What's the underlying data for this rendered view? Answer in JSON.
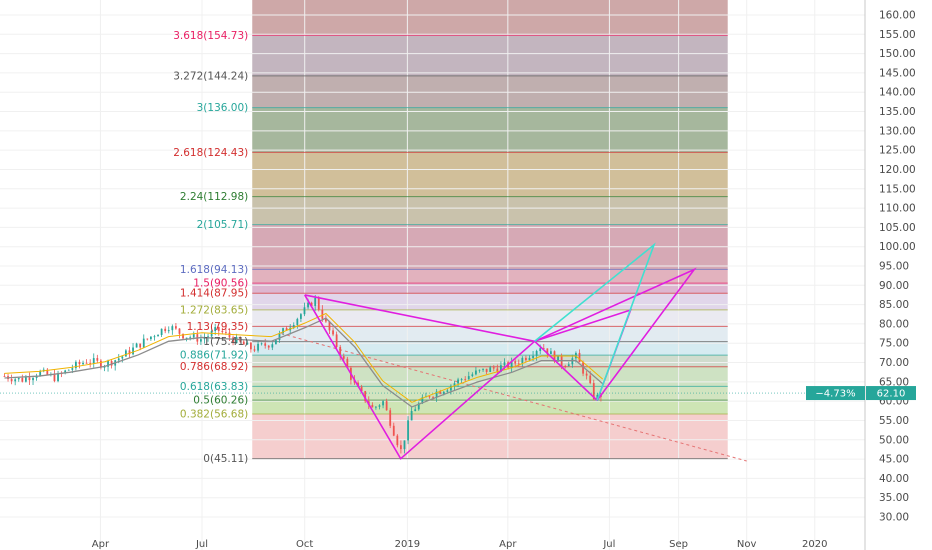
{
  "chart_data": {
    "type": "line",
    "title": "",
    "xlabel": "",
    "ylabel": "",
    "ylim": [
      25,
      165
    ],
    "y_ticks": [
      "160.00",
      "155.00",
      "150.00",
      "145.00",
      "140.00",
      "135.00",
      "130.00",
      "125.00",
      "120.00",
      "115.00",
      "110.00",
      "105.00",
      "100.00",
      "95.00",
      "90.00",
      "85.00",
      "80.00",
      "75.00",
      "70.00",
      "65.00",
      "60.00",
      "55.00",
      "50.00",
      "45.00",
      "40.00",
      "35.00",
      "30.00"
    ],
    "x_ticks": [
      {
        "label": "Apr",
        "date": "2018-04-01"
      },
      {
        "label": "Jul",
        "date": "2018-07-01"
      },
      {
        "label": "Oct",
        "date": "2018-10-01"
      },
      {
        "label": "2019",
        "date": "2019-01-01"
      },
      {
        "label": "Apr",
        "date": "2019-04-01"
      },
      {
        "label": "Jul",
        "date": "2019-07-01"
      },
      {
        "label": "Sep",
        "date": "2019-09-01"
      },
      {
        "label": "Nov",
        "date": "2019-11-01"
      },
      {
        "label": "2020",
        "date": "2020-01-01"
      }
    ],
    "x_range": [
      "2018-01-01",
      "2020-02-15"
    ],
    "fib_start": "2018-08-15",
    "fib_end": "2019-10-15",
    "fib_levels": [
      {
        "label": "0(45.11)",
        "value": 45.11,
        "color": "#555555",
        "fill": "#f3c6c6"
      },
      {
        "label": "0.382(56.68)",
        "value": 56.68,
        "color": "#a3ad3a",
        "fill": "#c6e0a8"
      },
      {
        "label": "0.5(60.26)",
        "value": 60.26,
        "color": "#2e7d32",
        "fill": "#c9dfb5"
      },
      {
        "label": "0.618(63.83)",
        "value": 63.83,
        "color": "#26a69a",
        "fill": "#c5ddb9"
      },
      {
        "label": "0.786(68.92)",
        "value": 68.92,
        "color": "#d32f2f",
        "fill": "#c8d6c4"
      },
      {
        "label": "0.886(71.92)",
        "value": 71.92,
        "color": "#26a69a",
        "fill": "#cfe8ee"
      },
      {
        "label": "1(75.41)",
        "value": 75.41,
        "color": "#555555",
        "fill": "#dde7ee"
      },
      {
        "label": "1.13(79.35)",
        "value": 79.35,
        "color": "#d32f2f",
        "fill": "#e6e6ef"
      },
      {
        "label": "1.272(83.65)",
        "value": 83.65,
        "color": "#a3ad3a",
        "fill": "#dccfe6"
      },
      {
        "label": "1.414(87.95)",
        "value": 87.95,
        "color": "#d32f2f",
        "fill": "#d7a9c8"
      },
      {
        "label": "1.5(90.56)",
        "value": 90.56,
        "color": "#e91e63",
        "fill": "#dda5b3"
      },
      {
        "label": "1.618(94.13)",
        "value": 94.13,
        "color": "#5c6bc0",
        "fill": "#cf9aa8"
      },
      {
        "label": "2(105.71)",
        "value": 105.71,
        "color": "#26a69a",
        "fill": "#c0b79d"
      },
      {
        "label": "2.24(112.98)",
        "value": 112.98,
        "color": "#2e7d32",
        "fill": "#c9b488"
      },
      {
        "label": "2.618(124.43)",
        "value": 124.43,
        "color": "#d32f2f",
        "fill": "#96aa8c"
      },
      {
        "label": "3(136.00)",
        "value": 136.0,
        "color": "#26a69a",
        "fill": "#b5a1a1"
      },
      {
        "label": "3.272(144.24)",
        "value": 144.24,
        "color": "#555555",
        "fill": "#b9a8b4"
      },
      {
        "label": "3.618(154.73)",
        "value": 154.73,
        "color": "#e91e63",
        "fill": "#c59999"
      },
      {
        "label": "",
        "value": 168,
        "color": "#555555",
        "fill": "#d7d9d8"
      }
    ],
    "series": [
      {
        "type": "candlestick",
        "points": [
          [
            "2018-01-05",
            66.5
          ],
          [
            "2018-01-20",
            65.5
          ],
          [
            "2018-02-05",
            67.5
          ],
          [
            "2018-02-20",
            66.0
          ],
          [
            "2018-03-05",
            68.5
          ],
          [
            "2018-03-20",
            70.5
          ],
          [
            "2018-04-05",
            69.5
          ],
          [
            "2018-04-20",
            71.5
          ],
          [
            "2018-05-05",
            74.5
          ],
          [
            "2018-05-20",
            77.5
          ],
          [
            "2018-06-01",
            79.5
          ],
          [
            "2018-06-15",
            77.0
          ],
          [
            "2018-07-01",
            76.0
          ],
          [
            "2018-07-15",
            78.5
          ],
          [
            "2018-08-01",
            75.5
          ],
          [
            "2018-08-15",
            73.5
          ],
          [
            "2018-09-01",
            75.0
          ],
          [
            "2018-09-15",
            79.0
          ],
          [
            "2018-10-01",
            83.5
          ],
          [
            "2018-10-10",
            86.5
          ],
          [
            "2018-10-20",
            80.0
          ],
          [
            "2018-11-01",
            73.0
          ],
          [
            "2018-11-15",
            64.0
          ],
          [
            "2018-12-01",
            58.0
          ],
          [
            "2018-12-10",
            60.0
          ],
          [
            "2018-12-20",
            52.0
          ],
          [
            "2018-12-26",
            47.0
          ],
          [
            "2019-01-05",
            57.5
          ],
          [
            "2019-01-20",
            61.5
          ],
          [
            "2019-02-05",
            63.5
          ],
          [
            "2019-02-20",
            66.0
          ],
          [
            "2019-03-05",
            67.5
          ],
          [
            "2019-03-20",
            68.5
          ],
          [
            "2019-04-05",
            69.5
          ],
          [
            "2019-04-20",
            72.0
          ],
          [
            "2019-05-01",
            74.5
          ],
          [
            "2019-05-10",
            72.0
          ],
          [
            "2019-05-20",
            69.5
          ],
          [
            "2019-06-01",
            71.5
          ],
          [
            "2019-06-10",
            66.5
          ],
          [
            "2019-06-18",
            60.5
          ],
          [
            "2019-06-25",
            62.0
          ]
        ]
      },
      {
        "name": "",
        "color": "#8c8c8c",
        "points": [
          [
            "2018-01-05",
            66.0
          ],
          [
            "2018-02-05",
            66.5
          ],
          [
            "2018-03-05",
            67.5
          ],
          [
            "2018-04-05",
            69.0
          ],
          [
            "2018-05-05",
            72.0
          ],
          [
            "2018-06-01",
            75.5
          ],
          [
            "2018-07-01",
            76.5
          ],
          [
            "2018-08-01",
            76.0
          ],
          [
            "2018-09-01",
            75.5
          ],
          [
            "2018-10-01",
            79.0
          ],
          [
            "2018-10-20",
            81.5
          ],
          [
            "2018-11-15",
            74.0
          ],
          [
            "2018-12-10",
            64.0
          ],
          [
            "2019-01-05",
            58.5
          ],
          [
            "2019-02-05",
            62.0
          ],
          [
            "2019-03-05",
            65.0
          ],
          [
            "2019-04-05",
            67.5
          ],
          [
            "2019-05-01",
            70.5
          ],
          [
            "2019-06-01",
            70.5
          ],
          [
            "2019-06-25",
            64.5
          ]
        ]
      }
    ],
    "pattern_lines": [
      {
        "color": "#e01ee0",
        "points": [
          [
            "2018-10-01",
            87.5
          ],
          [
            "2019-04-25",
            75.5
          ]
        ]
      },
      {
        "color": "#e01ee0",
        "points": [
          [
            "2018-10-01",
            87.5
          ],
          [
            "2018-12-26",
            45.1
          ],
          [
            "2019-04-25",
            75.5
          ]
        ]
      },
      {
        "color": "#e01ee0",
        "points": [
          [
            "2019-04-25",
            75.5
          ],
          [
            "2019-06-20",
            60.2
          ]
        ]
      },
      {
        "color": "#e01ee0",
        "points": [
          [
            "2019-04-25",
            75.5
          ],
          [
            "2019-09-15",
            94.1
          ],
          [
            "2019-06-20",
            60.2
          ]
        ]
      },
      {
        "color": "#e01ee0",
        "points": [
          [
            "2019-04-25",
            75.5
          ],
          [
            "2019-07-20",
            83.6
          ],
          [
            "2019-06-20",
            60.2
          ]
        ]
      },
      {
        "color": "#40e0d0",
        "points": [
          [
            "2019-04-25",
            75.5
          ],
          [
            "2019-08-10",
            100.5
          ],
          [
            "2019-06-20",
            60.2
          ]
        ]
      }
    ],
    "trend_line": {
      "color": "#e57373",
      "points": [
        [
          "2018-09-10",
          77.5
        ],
        [
          "2019-11-01",
          44.5
        ]
      ]
    },
    "badge": {
      "change": "−4.73%",
      "price": "62.10",
      "value": 62.1,
      "color": "#26a69a"
    }
  }
}
